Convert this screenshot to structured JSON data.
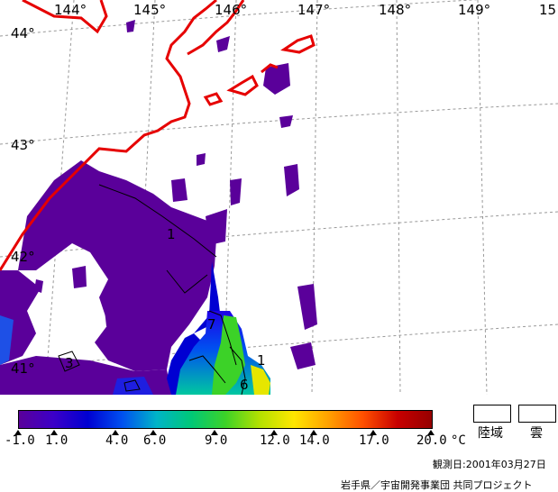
{
  "map": {
    "longitude_labels": [
      "144°",
      "145°",
      "146°",
      "147°",
      "148°",
      "149°",
      "15"
    ],
    "latitude_labels": [
      "44°",
      "43°",
      "42°",
      "41°"
    ],
    "contour_labels": [
      "1",
      "7",
      "3",
      "6",
      "1"
    ]
  },
  "colorbar": {
    "ticks": [
      "-1.0",
      "1.0",
      "4.0",
      "6.0",
      "9.0",
      "12.0",
      "14.0",
      "17.0",
      "20.0"
    ],
    "unit": "°C",
    "colors": [
      "#5a009a",
      "#3c00c8",
      "#0000d2",
      "#0050f0",
      "#00b4c8",
      "#00c878",
      "#3cd228",
      "#b4e100",
      "#ffe600",
      "#ffa000",
      "#ff5000",
      "#c80000",
      "#960000"
    ]
  },
  "legend": {
    "land_label": "陸域",
    "cloud_label": "雲"
  },
  "footer": {
    "observation_date": "観測日:2001年03月27日",
    "credit": "岩手県／宇宙開発事業団 共同プロジェクト"
  }
}
